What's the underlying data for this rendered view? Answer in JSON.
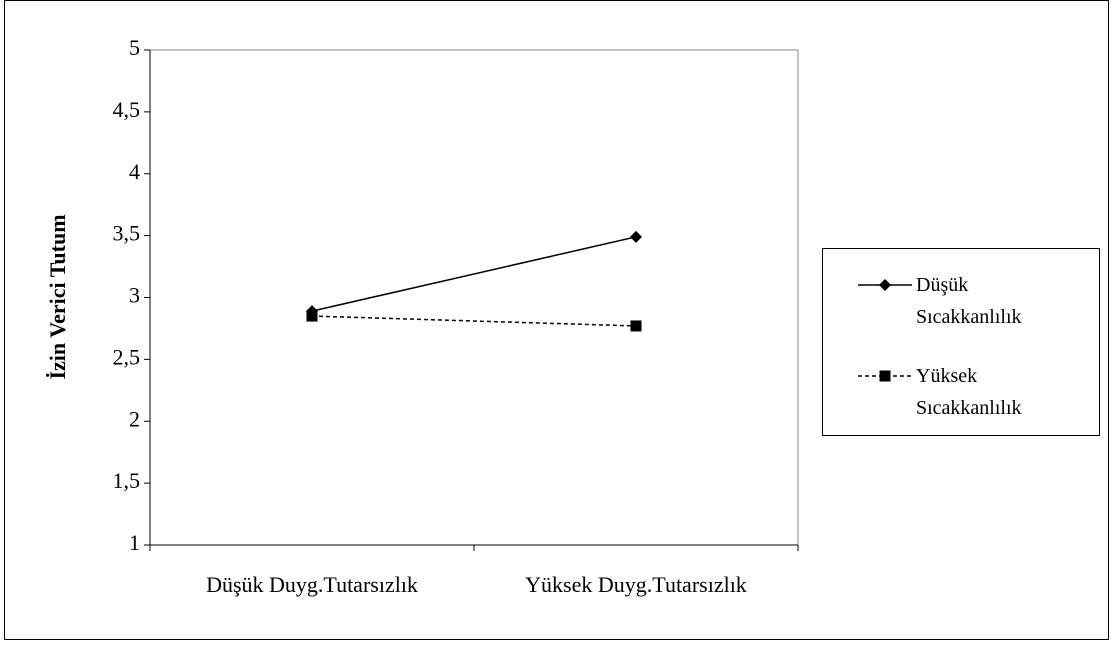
{
  "chart_data": {
    "type": "line",
    "y_label": "İzin Verici Tutum",
    "categories": [
      "Düşük Duyg.Tutarsızlık",
      "Yüksek Duyg.Tutarsızlık"
    ],
    "series": [
      {
        "name": "Düşük Sıcakkanlılık",
        "color": "#000000",
        "marker": "diamond",
        "dash": "solid",
        "values": [
          2.89,
          3.49
        ]
      },
      {
        "name": "Yüksek Sıcakkanlılık",
        "color": "#000000",
        "marker": "square",
        "dash": "dashed",
        "values": [
          2.85,
          2.77
        ]
      }
    ],
    "ylim": [
      1,
      5
    ],
    "yticks": [
      1,
      {
        "value": 1.5,
        "label": "1,5"
      },
      2,
      {
        "value": 2.5,
        "label": "2,5"
      },
      3,
      {
        "value": 3.5,
        "label": "3,5"
      },
      4,
      {
        "value": 4.5,
        "label": "4,5"
      },
      5
    ],
    "legend": "right"
  }
}
